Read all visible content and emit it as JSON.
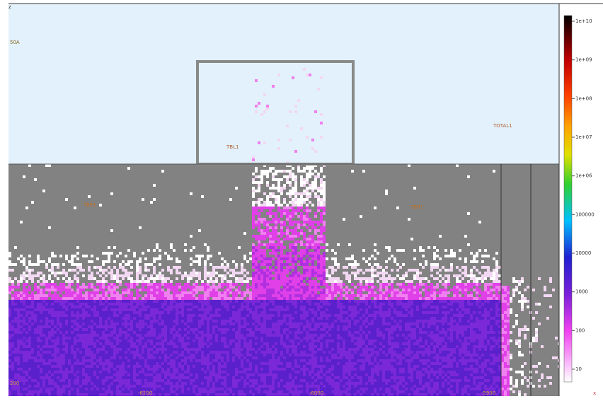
{
  "view": {
    "corner_label": "z",
    "region_labels": [
      "50A",
      "TBL1",
      "TOTAL1",
      "TBP1",
      "TBP1",
      "200"
    ],
    "colorbar": {
      "ticks": [
        "1e+10",
        "1e+09",
        "1e+08",
        "1e+07",
        "1e+06",
        "100000",
        "10000",
        "1000",
        "100",
        "10"
      ]
    },
    "x_axis": {
      "ticks": [
        "-6100",
        "-6000",
        "-5900"
      ],
      "label": "x"
    }
  }
}
